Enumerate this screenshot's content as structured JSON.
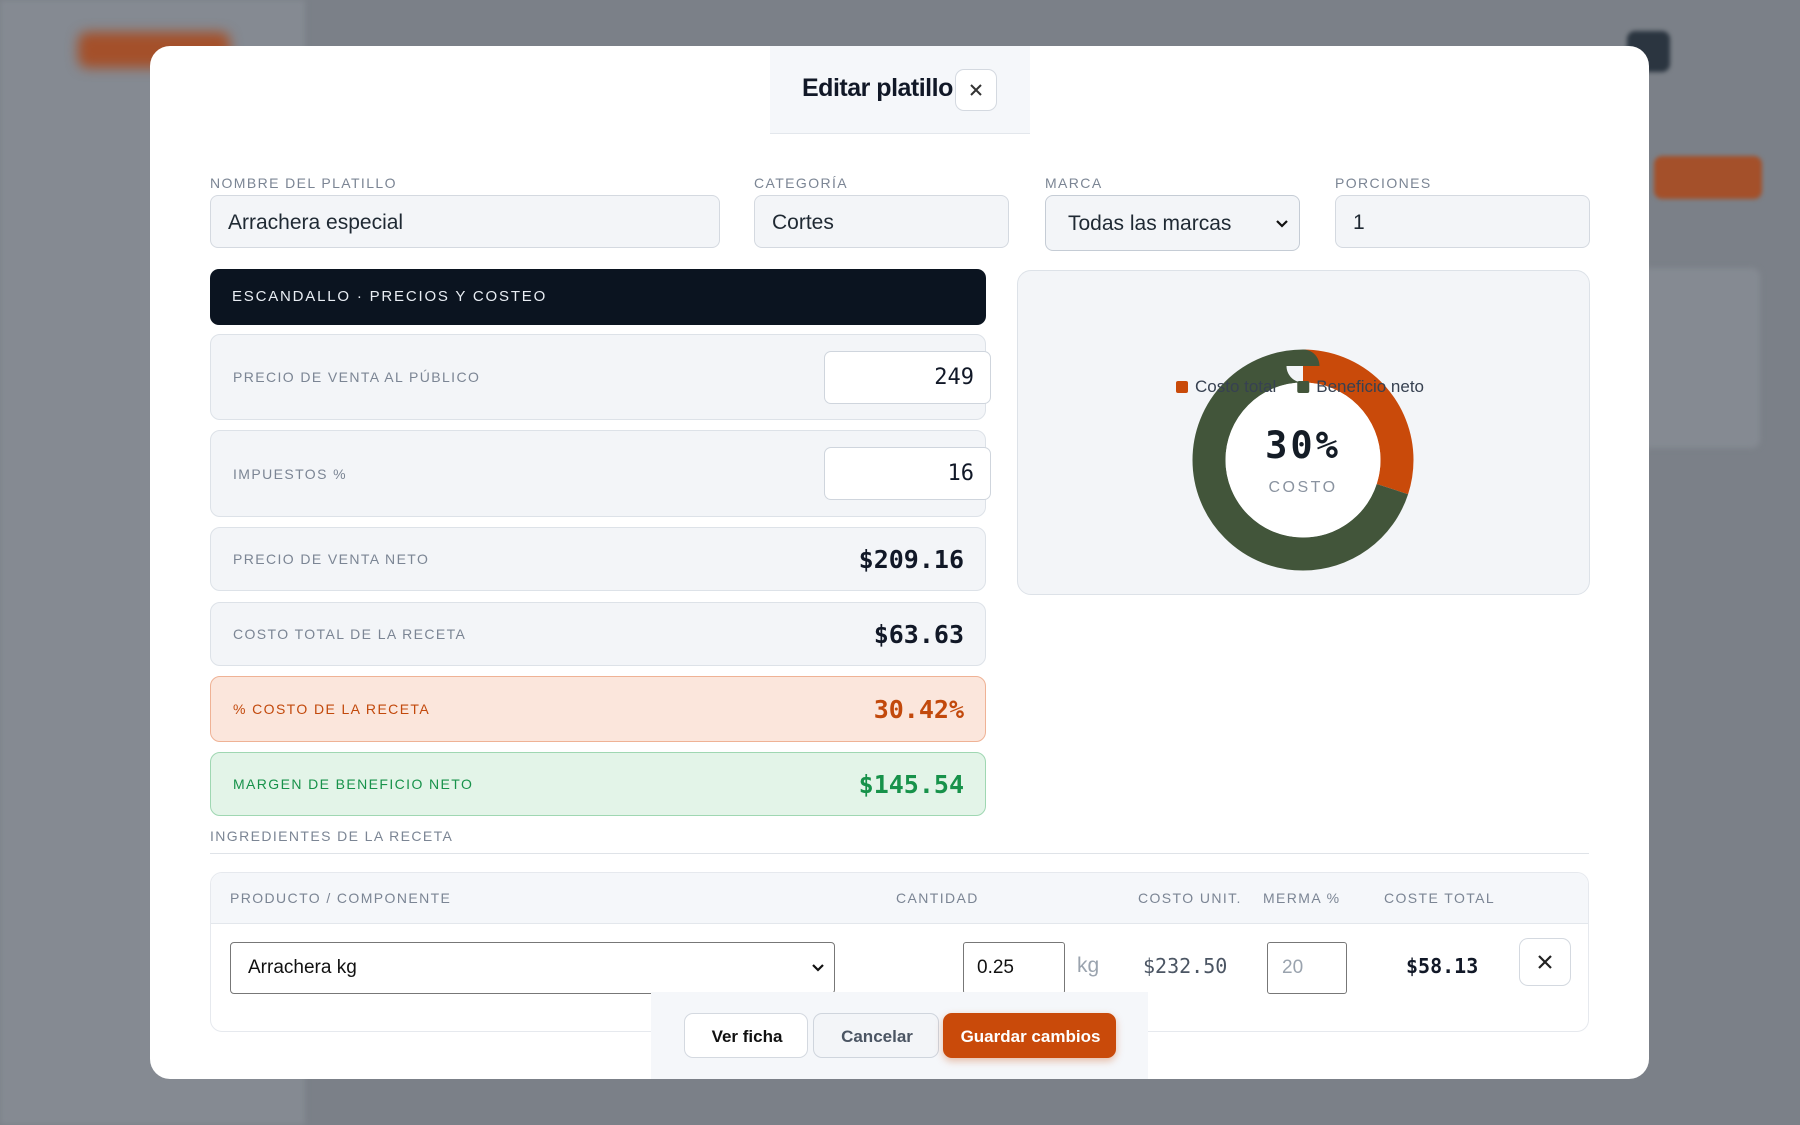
{
  "modal": {
    "title": "Editar platillo",
    "fields": [
      {
        "label": "NOMBRE DEL PLATILLO",
        "value": "Arrachera especial"
      },
      {
        "label": "CATEGORÍA",
        "value": "Cortes"
      },
      {
        "label": "MARCA",
        "value": "Todas las marcas"
      },
      {
        "label": "PORCIONES",
        "value": "1"
      }
    ],
    "section": "ESCANDALLO · PRECIOS Y COSTEO",
    "rows": [
      {
        "label": "PRECIO DE VENTA AL PÚBLICO",
        "value": "249"
      },
      {
        "label": "IMPUESTOS %",
        "value": "16"
      },
      {
        "label": "PRECIO DE VENTA NETO",
        "value": "$209.16"
      },
      {
        "label": "COSTO TOTAL DE LA RECETA",
        "value": "$63.63"
      },
      {
        "label": "% COSTO DE LA RECETA",
        "value": "30.42%"
      },
      {
        "label": "MARGEN DE BENEFICIO NETO",
        "value": "$145.54"
      }
    ],
    "chart_data": {
      "type": "donut",
      "center_label": "30%",
      "subtitle": "COSTO",
      "categories": [
        "Costo total",
        "Beneficio neto"
      ],
      "values": [
        30,
        70
      ],
      "colors": [
        "#c94a0a",
        "#42553a"
      ]
    },
    "ingredients": {
      "title": "INGREDIENTES DE LA RECETA",
      "columns": [
        "PRODUCTO / COMPONENTE",
        "CANTIDAD",
        "COSTO UNIT.",
        "MERMA %",
        "COSTE TOTAL"
      ],
      "rows": [
        {
          "product": "Arrachera kg",
          "quantity": "0.25",
          "unit": "kg",
          "unit_cost": "$232.50",
          "waste": "20",
          "total": "$58.13"
        }
      ]
    },
    "buttons": [
      "Ver ficha",
      "Cancelar",
      "Guardar cambios"
    ]
  }
}
